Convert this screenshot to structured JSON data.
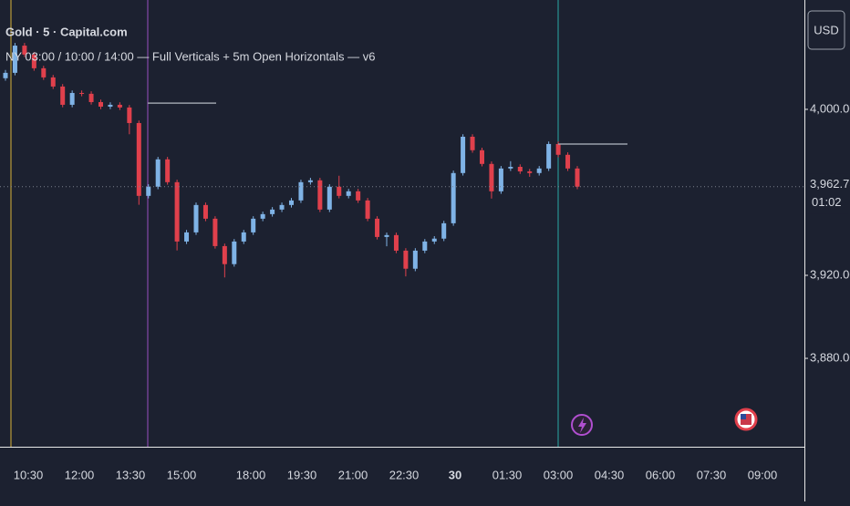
{
  "chart_data": {
    "type": "candlestick",
    "title": "Gold · 5 · Capital.com",
    "subtitle": "NY 03:00 / 10:00 / 14:00 — Full Verticals + 5m Open Horizontals — v6",
    "currency": "USD",
    "up_color": "#7fb3e6",
    "down_color": "#e0404c",
    "ylim": [
      3837.4,
      4052.7
    ],
    "yticks": [
      {
        "value": 3880,
        "label": "3,880.00"
      },
      {
        "value": 3920,
        "label": "3,920.00"
      },
      {
        "value": 4000,
        "label": "4,000.00"
      }
    ],
    "x_labels": [
      "10:30",
      "12:00",
      "13:30",
      "15:00",
      "18:00",
      "19:30",
      "21:00",
      "22:30",
      "30",
      "01:30",
      "03:00",
      "04:30",
      "06:00",
      "07:30",
      "09:00"
    ],
    "last_price": {
      "value": 3962.73,
      "label": "3,962.73"
    },
    "countdown": "01:02",
    "levels": [
      4003.0,
      3983.3
    ],
    "level_color": "#9aa0aa",
    "ohlc": [
      [
        4015.0,
        4019.0,
        4013.8,
        4017.6
      ],
      [
        4017.6,
        4032.0,
        4016.4,
        4030.7
      ],
      [
        4030.7,
        4032.0,
        4025.2,
        4026.4
      ],
      [
        4026.4,
        4027.6,
        4018.6,
        4019.8
      ],
      [
        4019.8,
        4021.0,
        4014.2,
        4015.4
      ],
      [
        4015.4,
        4016.6,
        4009.8,
        4011.0
      ],
      [
        4011.0,
        4012.2,
        4001.0,
        4002.2
      ],
      [
        4002.2,
        4009.1,
        4001.0,
        4007.9
      ],
      [
        4007.9,
        4009.1,
        4006.3,
        4007.5
      ],
      [
        4007.5,
        4008.7,
        4002.3,
        4003.5
      ],
      [
        4003.5,
        4004.7,
        4000.1,
        4001.3
      ],
      [
        4001.3,
        4003.4,
        4000.1,
        4002.2
      ],
      [
        4002.2,
        4003.4,
        3999.7,
        4000.9
      ],
      [
        4000.9,
        4002.1,
        3988.0,
        3993.4
      ],
      [
        3993.4,
        3994.6,
        3954.0,
        3958.3
      ],
      [
        3958.3,
        3963.9,
        3957.1,
        3962.7
      ],
      [
        3962.7,
        3977.1,
        3961.5,
        3975.9
      ],
      [
        3975.9,
        3977.1,
        3963.7,
        3964.9
      ],
      [
        3964.9,
        3966.1,
        3932.0,
        3936.3
      ],
      [
        3936.3,
        3941.9,
        3935.1,
        3940.7
      ],
      [
        3940.7,
        3955.1,
        3939.5,
        3953.9
      ],
      [
        3953.9,
        3955.1,
        3946.1,
        3947.3
      ],
      [
        3947.3,
        3948.5,
        3932.9,
        3934.1
      ],
      [
        3934.1,
        3935.3,
        3919.0,
        3925.4
      ],
      [
        3925.4,
        3937.5,
        3924.2,
        3936.3
      ],
      [
        3936.3,
        3941.9,
        3935.1,
        3940.7
      ],
      [
        3940.7,
        3948.5,
        3939.5,
        3947.3
      ],
      [
        3947.3,
        3950.7,
        3946.1,
        3949.5
      ],
      [
        3949.5,
        3952.9,
        3948.3,
        3951.7
      ],
      [
        3951.7,
        3955.1,
        3950.5,
        3953.9
      ],
      [
        3953.9,
        3957.3,
        3952.7,
        3956.1
      ],
      [
        3956.1,
        3966.1,
        3954.9,
        3964.9
      ],
      [
        3964.9,
        3967.0,
        3963.7,
        3965.8
      ],
      [
        3965.8,
        3967.0,
        3950.5,
        3951.7
      ],
      [
        3951.7,
        3963.9,
        3950.5,
        3962.7
      ],
      [
        3962.7,
        3968.0,
        3957.1,
        3958.3
      ],
      [
        3958.3,
        3961.7,
        3957.1,
        3960.5
      ],
      [
        3960.5,
        3961.7,
        3954.9,
        3956.1
      ],
      [
        3956.1,
        3957.3,
        3946.1,
        3947.3
      ],
      [
        3947.3,
        3948.5,
        3937.3,
        3938.5
      ],
      [
        3938.5,
        3940.6,
        3934.0,
        3939.4
      ],
      [
        3939.4,
        3940.6,
        3930.7,
        3931.9
      ],
      [
        3931.9,
        3933.1,
        3919.5,
        3923.2
      ],
      [
        3923.2,
        3933.1,
        3922.0,
        3931.9
      ],
      [
        3931.9,
        3937.5,
        3930.7,
        3936.3
      ],
      [
        3936.3,
        3938.9,
        3935.1,
        3937.7
      ],
      [
        3937.7,
        3946.3,
        3936.5,
        3945.1
      ],
      [
        3945.1,
        3970.5,
        3943.9,
        3969.3
      ],
      [
        3969.3,
        3988.0,
        3968.1,
        3986.8
      ],
      [
        3986.8,
        3988.0,
        3979.1,
        3980.3
      ],
      [
        3980.3,
        3981.5,
        3972.5,
        3973.7
      ],
      [
        3973.7,
        3974.9,
        3957.0,
        3960.5
      ],
      [
        3960.5,
        3972.7,
        3959.3,
        3971.5
      ],
      [
        3971.5,
        3975.0,
        3970.3,
        3972.3
      ],
      [
        3972.3,
        3973.5,
        3968.9,
        3970.1
      ],
      [
        3970.1,
        3971.3,
        3967.5,
        3969.3
      ],
      [
        3969.3,
        3972.7,
        3968.1,
        3971.5
      ],
      [
        3971.5,
        3984.5,
        3970.3,
        3983.3
      ],
      [
        3983.3,
        3984.5,
        3976.9,
        3978.1
      ],
      [
        3978.1,
        3979.3,
        3970.3,
        3971.5
      ],
      [
        3971.5,
        3972.7,
        3961.5,
        3962.73
      ]
    ]
  }
}
